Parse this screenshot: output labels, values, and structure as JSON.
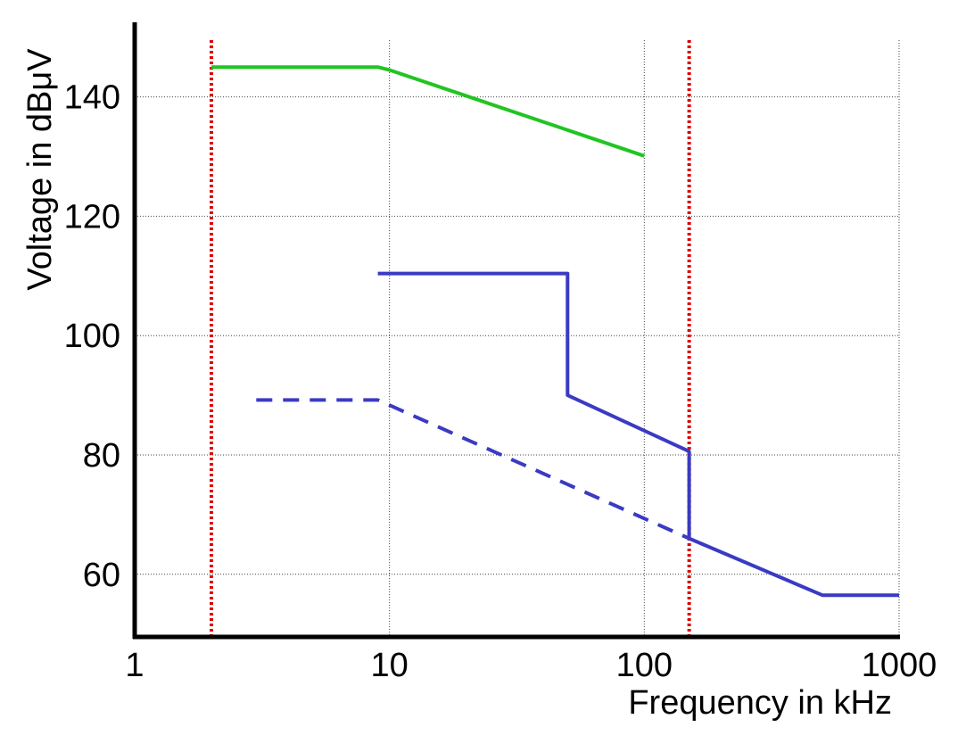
{
  "chart_data": {
    "type": "line",
    "title": "",
    "xlabel": "Frequency in kHz",
    "ylabel": "Voltage in dBμV",
    "xscale": "log",
    "xlim": [
      1,
      1000
    ],
    "ylim": [
      49.5,
      152.5
    ],
    "xticks": [
      1,
      10,
      100,
      1000
    ],
    "xtick_labels": [
      "1",
      "10",
      "100",
      "1000"
    ],
    "yticks": [
      60,
      80,
      100,
      120,
      140
    ],
    "ytick_labels": [
      "60",
      "80",
      "100",
      "120",
      "140"
    ],
    "grid": "dotted",
    "legend": "none",
    "series": [
      {
        "color": "#22c422",
        "style": "solid",
        "points": [
          [
            2,
            145
          ],
          [
            9,
            145
          ],
          [
            10,
            144.5
          ],
          [
            100,
            130.1
          ]
        ]
      },
      {
        "color": "#3a3ac4",
        "style": "solid",
        "points": [
          [
            9,
            110.4
          ],
          [
            50,
            110.4
          ],
          [
            50,
            90
          ],
          [
            150,
            80.6
          ],
          [
            150,
            66
          ],
          [
            500,
            56.5
          ],
          [
            1000,
            56.5
          ]
        ]
      },
      {
        "color": "#3a3ac4",
        "style": "dashed",
        "points": [
          [
            3,
            89.2
          ],
          [
            9,
            89.2
          ],
          [
            150,
            66
          ]
        ]
      }
    ],
    "vlines": [
      {
        "x": 2,
        "color": "#dd0000",
        "style": "dotted"
      },
      {
        "x": 150,
        "color": "#dd0000",
        "style": "dotted"
      }
    ]
  }
}
